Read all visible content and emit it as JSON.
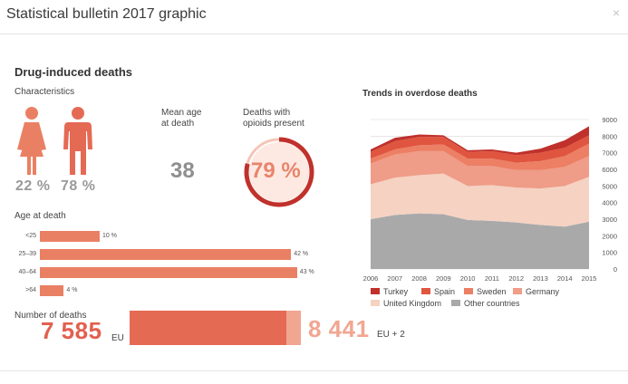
{
  "modal": {
    "title": "Statistical bulletin 2017 graphic",
    "close_icon": "×"
  },
  "infographic": {
    "title": "Drug-induced deaths",
    "characteristics": {
      "label": "Characteristics",
      "female_pct": "22 %",
      "male_pct": "78 %"
    },
    "mean_age": {
      "label_line1": "Mean age",
      "label_line2": "at death",
      "value": "38"
    },
    "opioids": {
      "label_line1": "Deaths with",
      "label_line2": "opioids present",
      "value": "79 %",
      "fraction": 0.79
    },
    "age_at_death": {
      "label": "Age at death",
      "rows": [
        {
          "group": "<25",
          "pct_label": "10 %",
          "value": 10
        },
        {
          "group": "25–39",
          "pct_label": "42 %",
          "value": 42
        },
        {
          "group": "40–64",
          "pct_label": "43 %",
          "value": 43
        },
        {
          "group": ">64",
          "pct_label": "4 %",
          "value": 4
        }
      ]
    },
    "number_of_deaths": {
      "label": "Number of deaths",
      "eu_value": "7 585",
      "eu_label": "EU",
      "eu2_value": "8 441",
      "eu2_label": "EU + 2"
    }
  },
  "colors": {
    "accent": "#e56a54",
    "female": "#ea8063",
    "male": "#e56a54",
    "turkey": "#c0312b",
    "spain": "#e0553f",
    "sweden": "#ec7f64",
    "germany": "#ef9c88",
    "uk": "#f5d2c2",
    "other": "#a9a9aa"
  },
  "chart_data": {
    "type": "area",
    "title": "Trends in overdose deaths",
    "x": [
      "2006",
      "2007",
      "2008",
      "2009",
      "2010",
      "2011",
      "2012",
      "2013",
      "2014",
      "2015"
    ],
    "ylim": [
      0,
      9000
    ],
    "yticks": [
      "0",
      "1000",
      "2000",
      "3000",
      "4000",
      "5000",
      "6000",
      "7000",
      "8000",
      "9000"
    ],
    "stacked": true,
    "legend_position": "bottom",
    "series": [
      {
        "name": "Other countries",
        "color": "#a9a9aa",
        "values": [
          3000,
          3250,
          3350,
          3300,
          2950,
          2900,
          2800,
          2650,
          2550,
          2850
        ]
      },
      {
        "name": "United Kingdom",
        "color": "#f5d2c2",
        "values": [
          2100,
          2250,
          2300,
          2450,
          2050,
          2150,
          2100,
          2200,
          2450,
          2700
        ]
      },
      {
        "name": "Germany",
        "color": "#ef9c88",
        "values": [
          1250,
          1400,
          1450,
          1350,
          1200,
          1150,
          1050,
          1100,
          1150,
          1250
        ]
      },
      {
        "name": "Sweden",
        "color": "#ec7f64",
        "values": [
          300,
          300,
          350,
          400,
          450,
          450,
          450,
          550,
          650,
          750
        ]
      },
      {
        "name": "Spain",
        "color": "#e0553f",
        "values": [
          400,
          500,
          500,
          450,
          400,
          450,
          450,
          500,
          500,
          500
        ]
      },
      {
        "name": "Turkey",
        "color": "#c0312b",
        "values": [
          150,
          200,
          150,
          100,
          100,
          100,
          150,
          250,
          450,
          550
        ]
      }
    ],
    "legend": [
      "Turkey",
      "Spain",
      "Sweden",
      "Germany",
      "United Kingdom",
      "Other countries"
    ]
  }
}
